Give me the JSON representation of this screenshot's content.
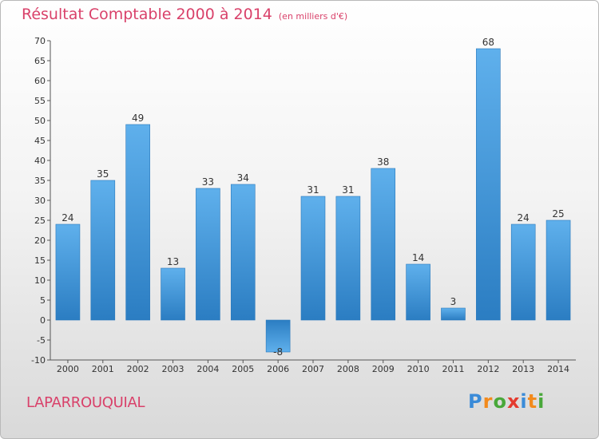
{
  "header": {
    "title": "Résultat Comptable 2000 à 2014",
    "subtitle": "(en milliers d'€)"
  },
  "footer": {
    "commune": "LAPARROUQUIAL",
    "logo": [
      "P",
      "r",
      "o",
      "x",
      "i",
      "t",
      "i"
    ],
    "logo_colors": [
      "#3a8bd8",
      "#f28a1c",
      "#49a83a",
      "#e43b2f",
      "#3a8bd8",
      "#f28a1c",
      "#49a83a"
    ]
  },
  "chart_data": {
    "type": "bar",
    "title": "Résultat Comptable 2000 à 2014",
    "subtitle": "(en milliers d'€)",
    "categories": [
      "2000",
      "2001",
      "2002",
      "2003",
      "2004",
      "2005",
      "2006",
      "2007",
      "2008",
      "2009",
      "2010",
      "2011",
      "2012",
      "2013",
      "2014"
    ],
    "values": [
      24,
      35,
      49,
      13,
      33,
      34,
      -8,
      31,
      31,
      38,
      14,
      3,
      68,
      24,
      25
    ],
    "ylim": [
      -10,
      70
    ],
    "yticks": [
      -10,
      -5,
      0,
      5,
      10,
      15,
      20,
      25,
      30,
      35,
      40,
      45,
      50,
      55,
      60,
      65,
      70
    ],
    "grid": false,
    "bar_color": "#3d93d6",
    "data_labels": true
  }
}
